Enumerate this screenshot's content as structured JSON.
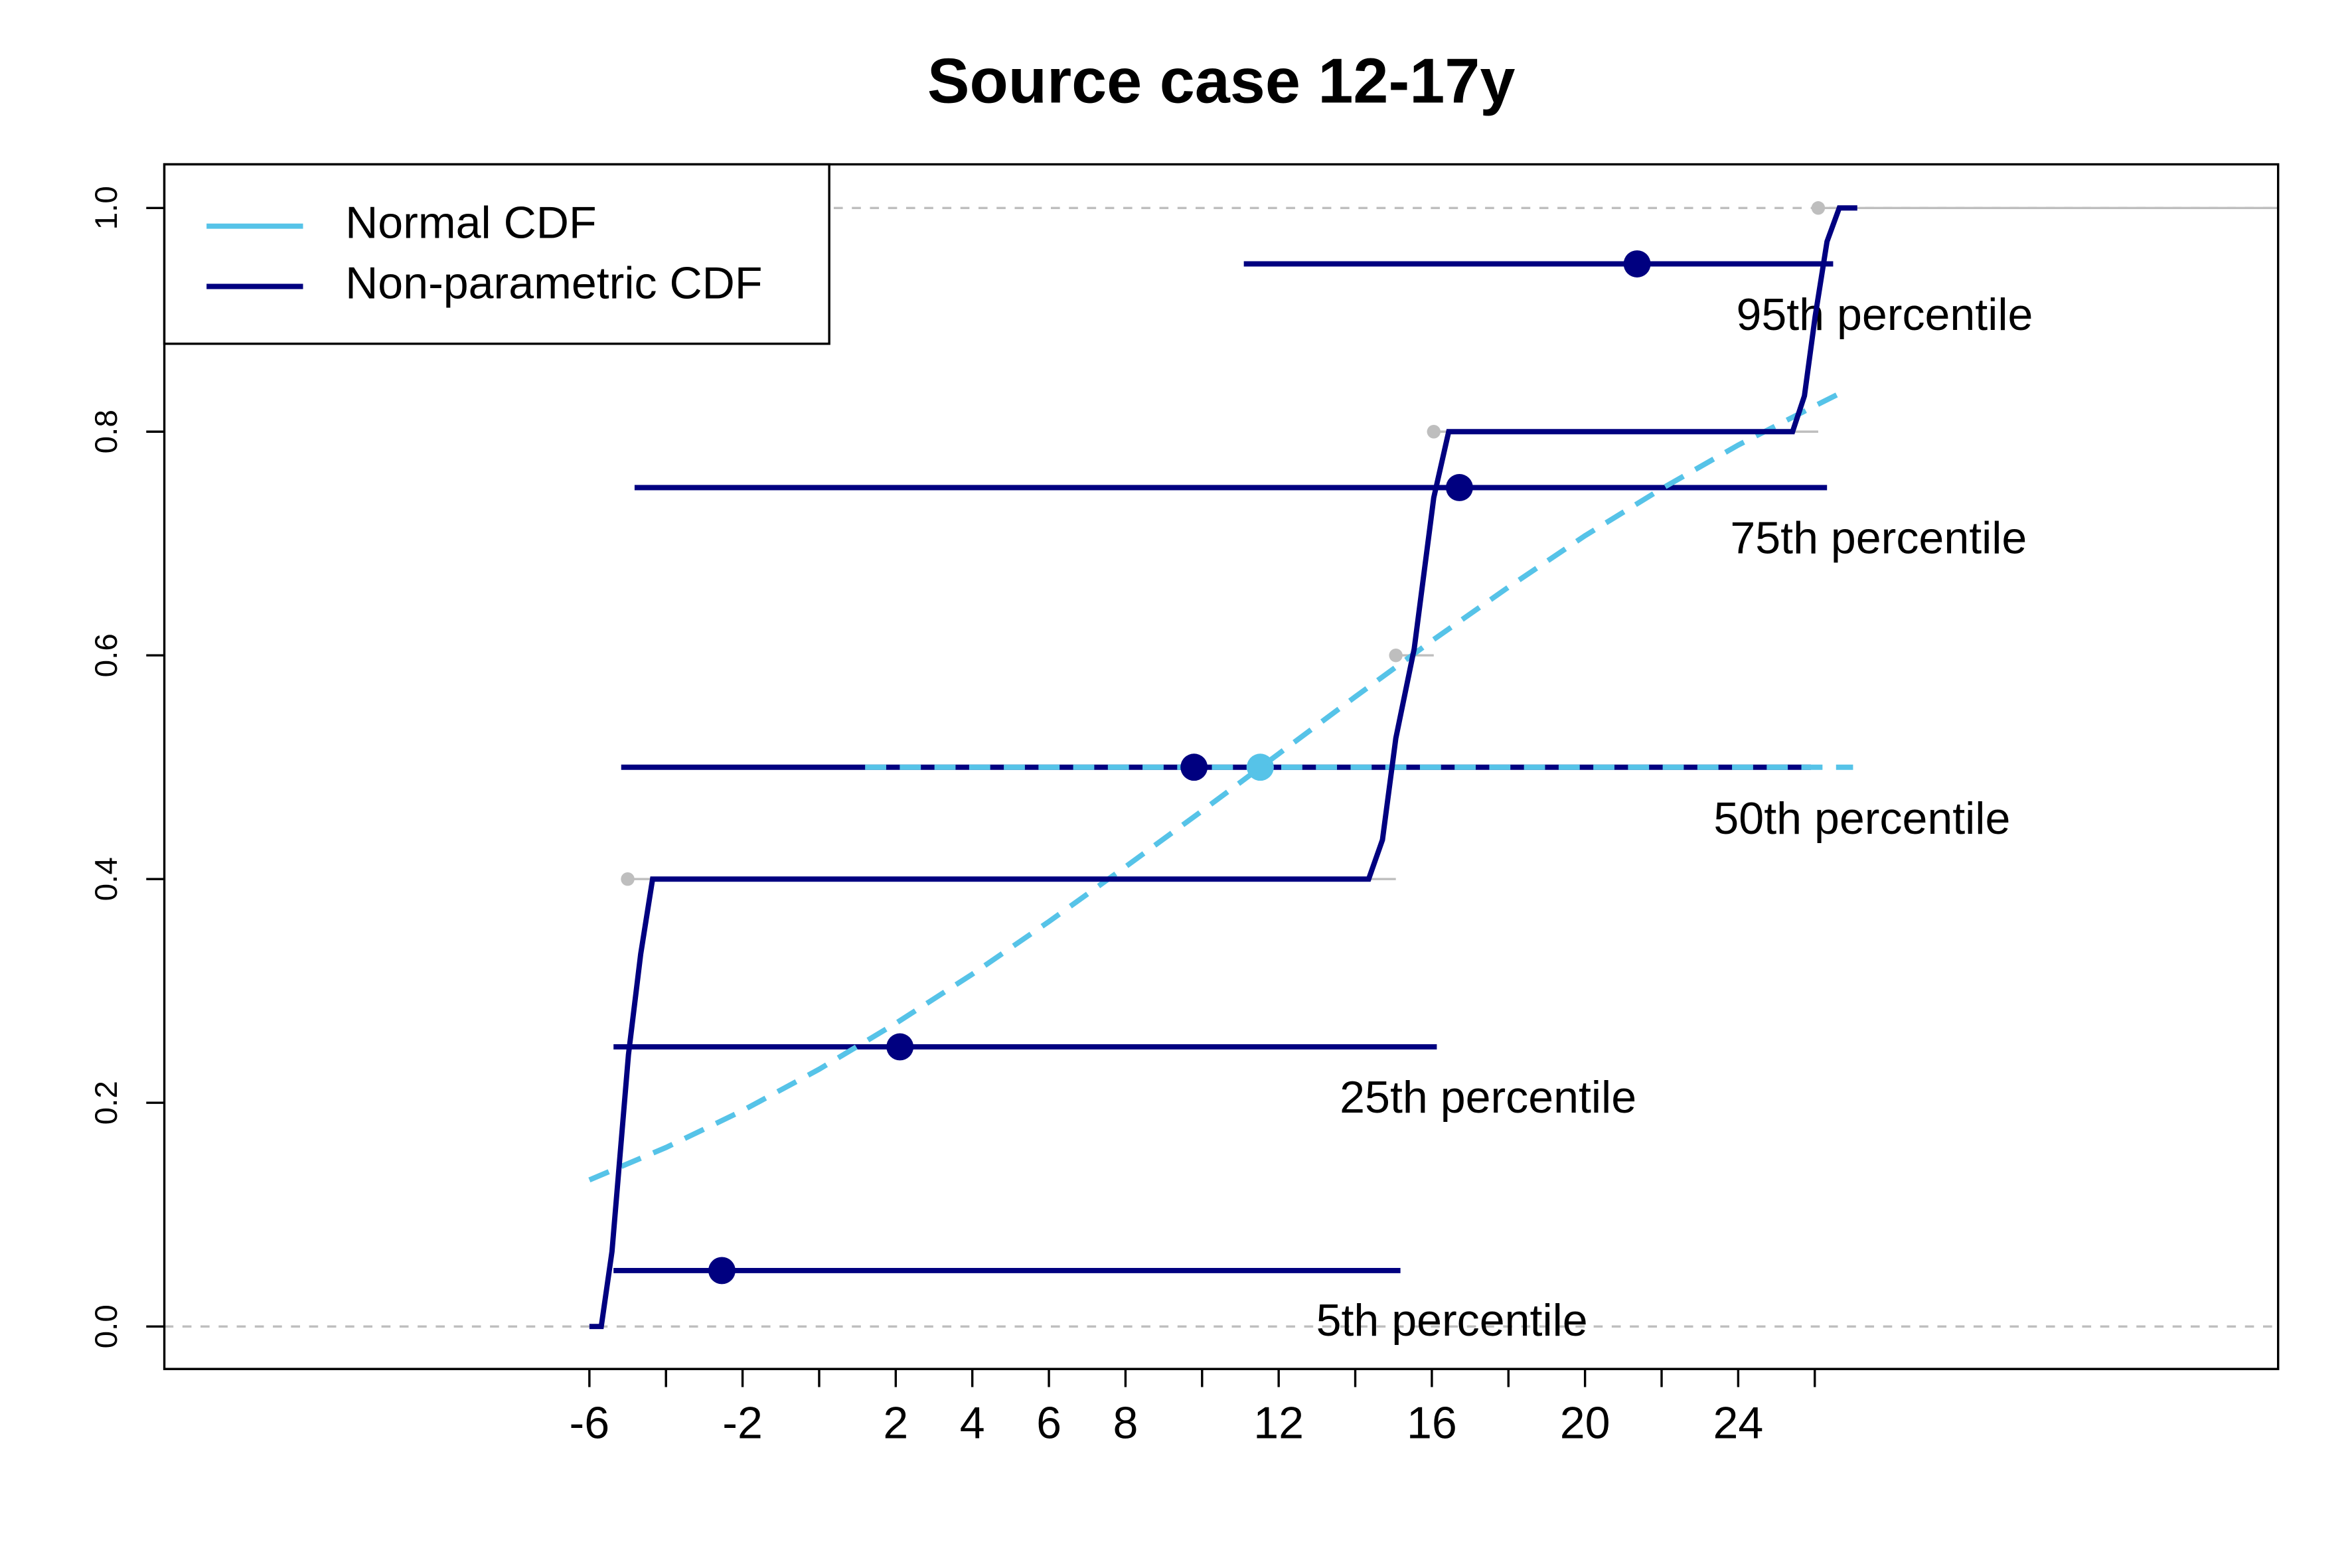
{
  "chart_data": {
    "type": "line",
    "title": "Source case 12-17y",
    "xlim": [
      -17.1,
      38.1
    ],
    "ylim": [
      -0.038,
      1.039
    ],
    "xticks": [
      -6,
      -2,
      2,
      4,
      6,
      8,
      12,
      16,
      20,
      24
    ],
    "xticks_unlabeled": [
      -4,
      0,
      10,
      14,
      18,
      22,
      26
    ],
    "yticks": [
      {
        "value": 0,
        "label": "0.0"
      },
      {
        "value": 0.2,
        "label": "0.2"
      },
      {
        "value": 0.4,
        "label": "0.4"
      },
      {
        "value": 0.6,
        "label": "0.6"
      },
      {
        "value": 0.8,
        "label": "0.8"
      },
      {
        "value": 1,
        "label": "1.0"
      }
    ],
    "legend": "topleft",
    "reference_lines": [
      0,
      1
    ],
    "series": [
      {
        "name": "Normal CDF",
        "color": "#56c3e8",
        "style": "dashed",
        "x": [
          -6,
          -4,
          -2,
          0,
          2,
          4,
          6,
          8,
          10,
          12,
          14,
          16,
          18,
          20,
          22,
          24,
          26,
          26.7
        ],
        "values": [
          0.131,
          0.16,
          0.193,
          0.23,
          0.271,
          0.315,
          0.362,
          0.411,
          0.461,
          0.512,
          0.563,
          0.613,
          0.661,
          0.707,
          0.749,
          0.788,
          0.823,
          0.835
        ]
      },
      {
        "name": "Non-parametric CDF",
        "color": "#000080",
        "style": "solid",
        "x": [
          -6,
          -5.69,
          -5.41,
          -4.98,
          -4.66,
          -4.35,
          14.35,
          14.71,
          15.06,
          15.54,
          16.05,
          16.44,
          25.42,
          25.73,
          26.01,
          26.32,
          26.64,
          27.11
        ],
        "values": [
          0,
          0,
          0.067,
          0.243,
          0.333,
          0.4,
          0.4,
          0.435,
          0.526,
          0.606,
          0.741,
          0.8,
          0.8,
          0.832,
          0.903,
          0.97,
          1,
          1
        ]
      }
    ],
    "empirical_points": {
      "color": "#bebebe",
      "x": [
        -5.0,
        15.06,
        16.05,
        26.09
      ],
      "values": [
        0.4,
        0.6,
        0.8,
        1.0
      ]
    },
    "percentiles": [
      {
        "label": "5th percentile",
        "y": 0.05,
        "lower": -5.37,
        "upper": 15.18,
        "estimate": -2.54
      },
      {
        "label": "25th percentile",
        "y": 0.25,
        "lower": -5.37,
        "upper": 16.13,
        "estimate": 2.11
      },
      {
        "label": "50th percentile",
        "y": 0.5,
        "lower": -5.17,
        "upper": 25.9,
        "estimate": 9.79
      },
      {
        "label": "75th percentile",
        "y": 0.75,
        "lower": -4.82,
        "upper": 26.32,
        "estimate": 16.72
      },
      {
        "label": "95th percentile",
        "y": 0.95,
        "lower": 11.09,
        "upper": 26.48,
        "estimate": 21.36
      }
    ],
    "normal_median": {
      "y": 0.5,
      "lower": 1.2,
      "upper": 27.0,
      "estimate": 11.52
    }
  }
}
